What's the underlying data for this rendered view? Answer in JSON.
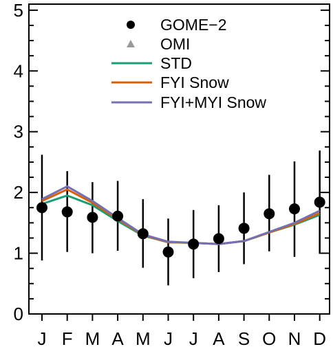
{
  "chart_data": {
    "type": "line",
    "categories": [
      "J",
      "F",
      "M",
      "A",
      "M",
      "J",
      "J",
      "A",
      "S",
      "O",
      "N",
      "D"
    ],
    "ylim": [
      0,
      5.1
    ],
    "yticks": [
      0,
      1,
      2,
      3,
      4,
      5
    ],
    "grid": false,
    "legend_position": "top-center",
    "points": {
      "name": "GOME−2",
      "marker": "circle",
      "color": "#000000",
      "values": [
        1.75,
        1.68,
        1.59,
        1.61,
        1.32,
        1.02,
        1.15,
        1.24,
        1.41,
        1.65,
        1.73,
        1.84
      ],
      "err_low": [
        0.88,
        1.02,
        1.0,
        1.04,
        0.76,
        0.47,
        0.59,
        0.69,
        0.82,
        1.03,
        0.94,
        0.99
      ],
      "err_high": [
        2.62,
        2.35,
        2.17,
        2.19,
        1.89,
        1.57,
        1.71,
        1.79,
        2.0,
        2.29,
        2.51,
        2.69
      ]
    },
    "omi": {
      "name": "OMI",
      "marker": "triangle",
      "color": "#999999",
      "values": []
    },
    "series": [
      {
        "name": "STD",
        "color": "#1b9e77",
        "values": [
          1.81,
          1.95,
          1.79,
          1.53,
          1.29,
          1.18,
          1.17,
          1.15,
          1.2,
          1.34,
          1.47,
          1.63
        ]
      },
      {
        "name": "FYI Snow",
        "color": "#d95f02",
        "values": [
          1.86,
          2.05,
          1.83,
          1.56,
          1.3,
          1.18,
          1.17,
          1.15,
          1.2,
          1.34,
          1.48,
          1.66
        ]
      },
      {
        "name": "FYI+MYI Snow",
        "color": "#7570b3",
        "values": [
          1.89,
          2.1,
          1.86,
          1.58,
          1.31,
          1.19,
          1.17,
          1.15,
          1.2,
          1.35,
          1.5,
          1.7
        ]
      }
    ]
  }
}
